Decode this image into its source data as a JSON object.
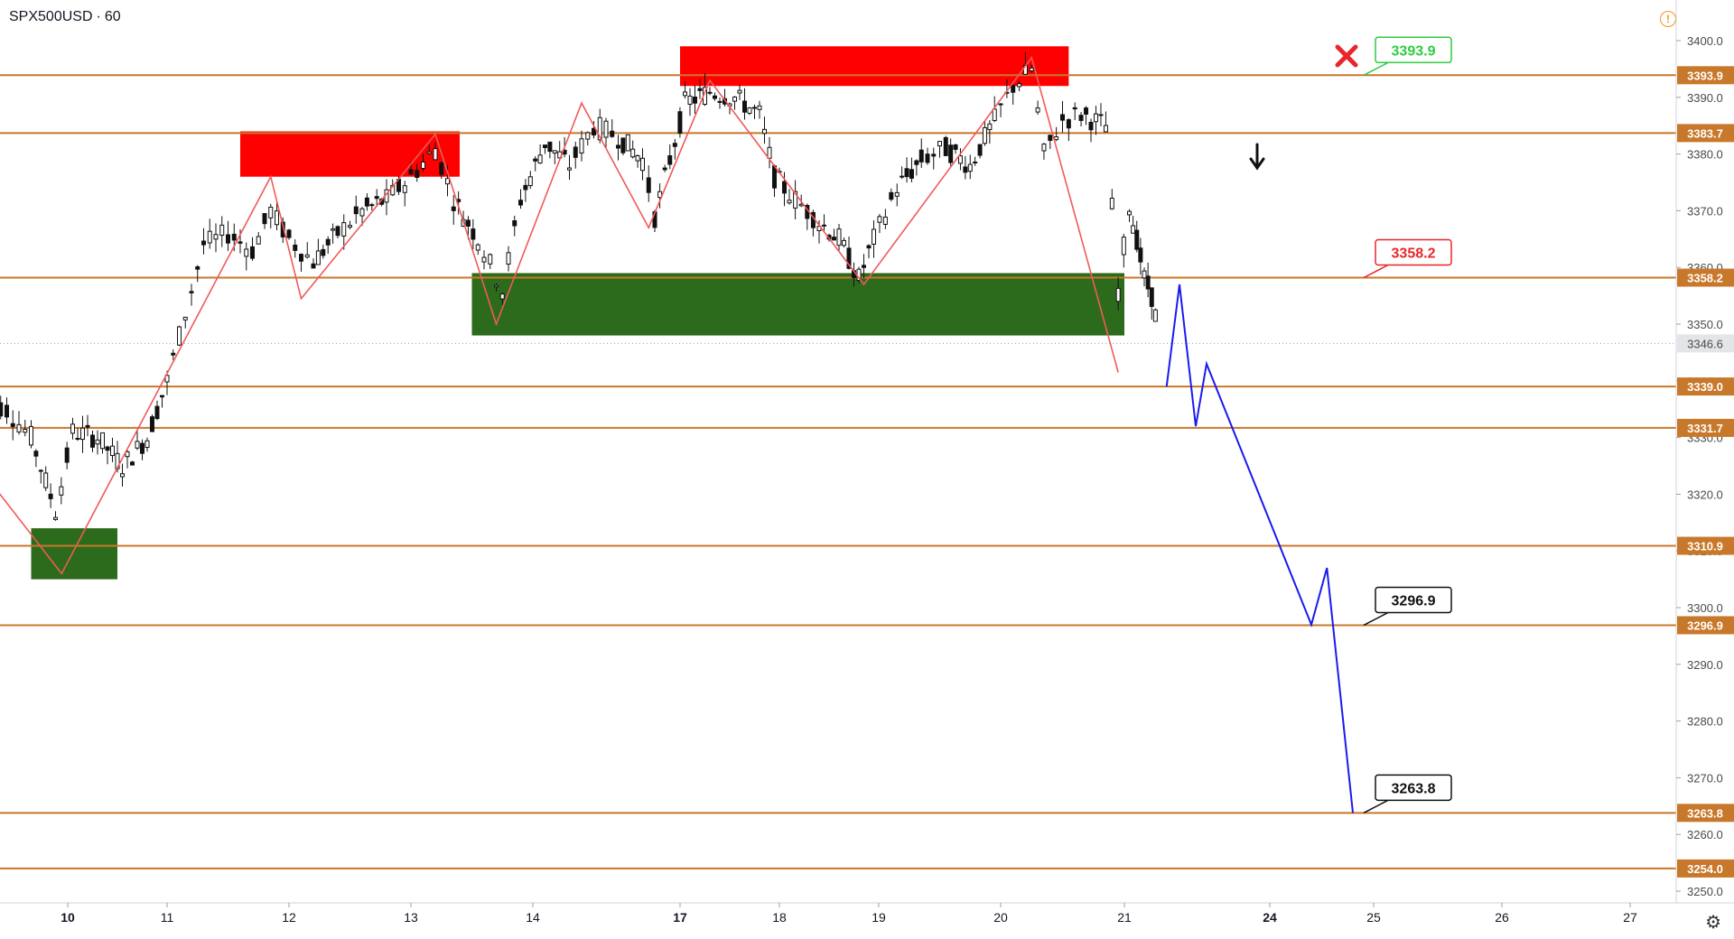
{
  "header": {
    "symbol": "SPX500USD",
    "separator": "·",
    "interval": "60"
  },
  "icons": {
    "alert": "alert-circle-icon",
    "settings": "gear-icon",
    "invalidation": "cross-icon",
    "direction": "down-arrow-icon"
  },
  "colors": {
    "level": "#c8782a",
    "resistance_zone": "#ff0000",
    "support_zone": "#2d6b1c",
    "zigzag": "#f05a5a",
    "projection": "#1a1aee",
    "candle": "#111111",
    "callout_green": "#2ecc40",
    "callout_red": "#e8262b",
    "callout_black": "#111111"
  },
  "chart_data": {
    "type": "candlestick",
    "symbol": "SPX500USD",
    "interval": "60",
    "ylim": [
      3248,
      3404
    ],
    "y_ticks": [
      3250.0,
      3260.0,
      3270.0,
      3280.0,
      3290.0,
      3300.0,
      3310.0,
      3320.0,
      3330.0,
      3340.0,
      3350.0,
      3360.0,
      3370.0,
      3380.0,
      3390.0,
      3400.0
    ],
    "y_tick_labels": [
      "3250.0",
      "3260.0",
      "3270.0",
      "3280.0",
      "3290.0",
      "3300.0",
      "3310.0",
      "3320.0",
      "3330.0",
      "3340.0",
      "3350.0",
      "3360.0",
      "3370.0",
      "3380.0",
      "3390.0",
      "3400.0"
    ],
    "x_ticks": [
      {
        "label": "10",
        "bold": true
      },
      {
        "label": "11",
        "bold": false
      },
      {
        "label": "12",
        "bold": false
      },
      {
        "label": "13",
        "bold": false
      },
      {
        "label": "14",
        "bold": false
      },
      {
        "label": "17",
        "bold": true
      },
      {
        "label": "18",
        "bold": false
      },
      {
        "label": "19",
        "bold": false
      },
      {
        "label": "20",
        "bold": false
      },
      {
        "label": "21",
        "bold": false
      },
      {
        "label": "24",
        "bold": true
      },
      {
        "label": "25",
        "bold": false
      },
      {
        "label": "26",
        "bold": false
      },
      {
        "label": "27",
        "bold": false
      }
    ],
    "current_price": 3346.6,
    "current_price_label": "3346.6",
    "levels": [
      3393.9,
      3383.7,
      3358.2,
      3339.0,
      3331.7,
      3310.9,
      3296.9,
      3263.8,
      3254.0
    ],
    "level_labels": [
      "3393.9",
      "3383.7",
      "3358.2",
      "3339.0",
      "3331.7",
      "3310.9",
      "3296.9",
      "3263.8",
      "3254.0"
    ],
    "zones": [
      {
        "kind": "resistance",
        "x": [
          "11.6",
          "13.4"
        ],
        "y": [
          3376,
          3384
        ]
      },
      {
        "kind": "resistance",
        "x": [
          "17.0",
          "20.55"
        ],
        "y": [
          3392,
          3399
        ]
      },
      {
        "kind": "support",
        "x": [
          "13.5",
          "21.0"
        ],
        "y": [
          3348,
          3359
        ]
      },
      {
        "kind": "support",
        "x": [
          "9.7",
          "10.5"
        ],
        "y": [
          3305,
          3314
        ]
      }
    ],
    "zigzag": [
      [
        "9.3",
        3324
      ],
      [
        "9.95",
        3306
      ],
      [
        "11.85",
        3376
      ],
      [
        "12.1",
        3354.5
      ],
      [
        "13.2",
        3383.5
      ],
      [
        "13.7",
        3350
      ],
      [
        "14.4",
        3389
      ],
      [
        "14.95",
        3367
      ],
      [
        "17.3",
        3393
      ],
      [
        "18.85",
        3357
      ],
      [
        "20.25",
        3397
      ],
      [
        "20.95",
        3341.5
      ]
    ],
    "projection": [
      [
        "21.85",
        3339
      ],
      [
        "22.1",
        3357
      ],
      [
        "22.4",
        3332
      ],
      [
        "22.6",
        3343
      ],
      [
        "24.4",
        3297
      ],
      [
        "24.55",
        3307
      ],
      [
        "24.8",
        3263.8
      ]
    ],
    "callouts": [
      {
        "label": "3393.9",
        "value": 3393.9,
        "style": "green"
      },
      {
        "label": "3358.2",
        "value": 3358.2,
        "style": "red"
      },
      {
        "label": "3296.9",
        "value": 3296.9,
        "style": "black"
      },
      {
        "label": "3263.8",
        "value": 3263.8,
        "style": "black"
      }
    ],
    "candles_approx_path": [
      [
        "9.3",
        3337
      ],
      [
        "9.5",
        3335
      ],
      [
        "9.7",
        3330
      ],
      [
        "9.9",
        3317
      ],
      [
        "10.05",
        3331
      ],
      [
        "10.3",
        3330
      ],
      [
        "10.55",
        3325
      ],
      [
        "10.8",
        3330
      ],
      [
        "11.0",
        3340
      ],
      [
        "11.15",
        3352
      ],
      [
        "11.3",
        3364
      ],
      [
        "11.5",
        3366
      ],
      [
        "11.7",
        3363
      ],
      [
        "11.85",
        3370
      ],
      [
        "12.0",
        3365
      ],
      [
        "12.2",
        3361
      ],
      [
        "12.4",
        3366
      ],
      [
        "12.6",
        3370
      ],
      [
        "12.8",
        3372
      ],
      [
        "13.0",
        3376
      ],
      [
        "13.2",
        3381
      ],
      [
        "13.35",
        3372
      ],
      [
        "13.55",
        3365
      ],
      [
        "13.75",
        3356
      ],
      [
        "13.9",
        3372
      ],
      [
        "14.1",
        3382
      ],
      [
        "14.3",
        3378
      ],
      [
        "14.5",
        3385
      ],
      [
        "14.7",
        3383
      ],
      [
        "14.9",
        3379
      ],
      [
        "15.0",
        3369
      ],
      [
        "17.05",
        3389
      ],
      [
        "17.3",
        3391
      ],
      [
        "17.55",
        3390
      ],
      [
        "17.8",
        3387
      ],
      [
        "17.95",
        3376
      ],
      [
        "18.1",
        3373
      ],
      [
        "18.4",
        3368
      ],
      [
        "18.6",
        3365
      ],
      [
        "18.8",
        3358
      ],
      [
        "18.95",
        3365
      ],
      [
        "19.15",
        3374
      ],
      [
        "19.35",
        3379
      ],
      [
        "19.55",
        3381
      ],
      [
        "19.75",
        3378
      ],
      [
        "19.95",
        3386
      ],
      [
        "20.1",
        3392
      ],
      [
        "20.25",
        3395
      ],
      [
        "20.35",
        3380
      ],
      [
        "20.5",
        3386
      ],
      [
        "20.65",
        3387
      ],
      [
        "20.85",
        3385
      ],
      [
        "20.95",
        3356
      ],
      [
        "21.1",
        3371
      ],
      [
        "21.25",
        3365
      ],
      [
        "21.4",
        3358
      ],
      [
        "21.55",
        3355
      ],
      [
        "21.7",
        3348
      ]
    ]
  }
}
